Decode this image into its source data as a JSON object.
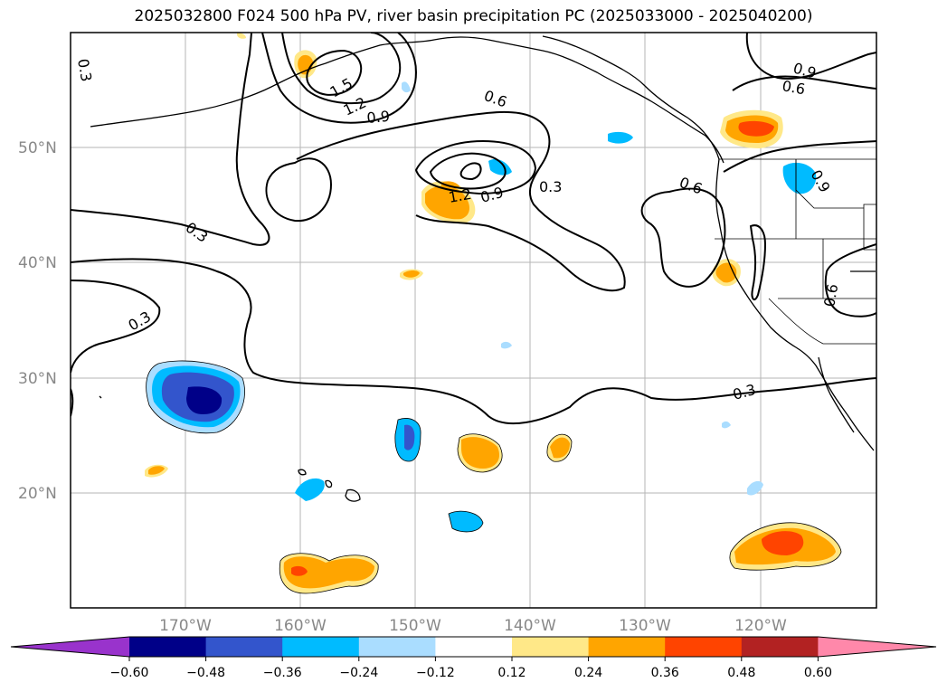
{
  "title": "2025032800 F024 500 hPa PV, river basin precipitation PC (2025033000 - 2025040200)",
  "map": {
    "lat_labels": [
      "50°N",
      "40°N",
      "30°N",
      "20°N"
    ],
    "lon_labels": [
      "170°W",
      "160°W",
      "150°W",
      "140°W",
      "130°W",
      "120°W"
    ]
  },
  "contour_labels": [
    "1.5",
    "1.2",
    "0.9",
    "0.6",
    "0.3",
    "0.3",
    "0.3",
    "1.2",
    "0.9",
    "0.3",
    "0.6",
    "0.9",
    "0.6",
    "0.6",
    "0.3",
    "0.9"
  ],
  "colorbar": {
    "colors": [
      "#9933cc",
      "#000088",
      "#3355cc",
      "#00bbff",
      "#aaddff",
      "#ffffff",
      "#ffe888",
      "#ffa500",
      "#ff4400",
      "#b22222",
      "#ff88aa"
    ],
    "tick_labels": [
      "−0.60",
      "−0.48",
      "−0.36",
      "−0.24",
      "−0.12",
      "0.12",
      "0.24",
      "0.36",
      "0.48",
      "0.60"
    ]
  }
}
